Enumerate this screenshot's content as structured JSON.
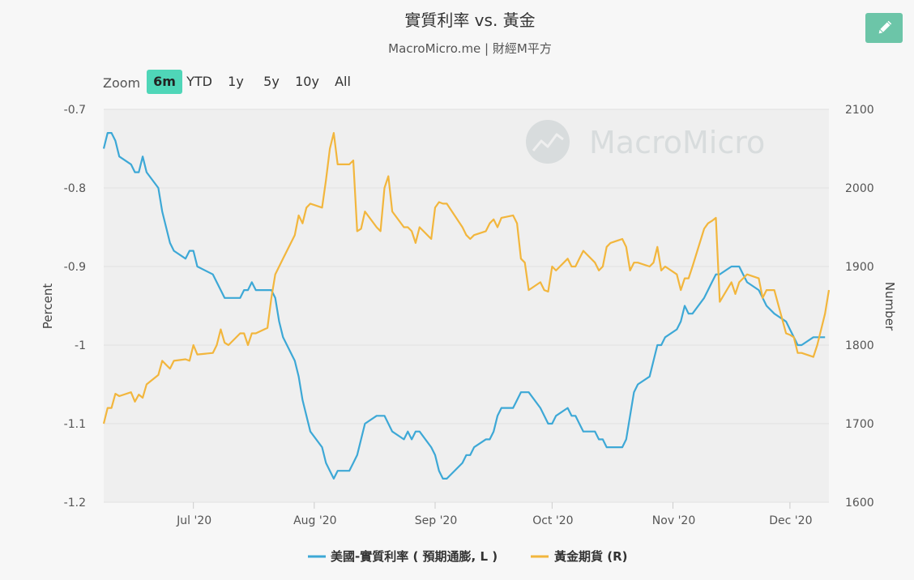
{
  "header": {
    "title": "實質利率 vs. 黃金",
    "subtitle": "MacroMicro.me | 財經M平方",
    "edit_icon": "pencil-icon"
  },
  "watermark": {
    "text": "MacroMicro"
  },
  "zoom": {
    "label": "Zoom",
    "options": [
      "6m",
      "YTD",
      "1y",
      "5y",
      "10y",
      "All"
    ],
    "selected": "6m"
  },
  "colors": {
    "plot_bg": "#efefef",
    "real_rate": "#3da8d6",
    "gold": "#f2b63d",
    "zoom_active": "#4fd6b8",
    "edit_button": "#6cc5a8"
  },
  "chart_data": {
    "type": "line",
    "x_ticks": [
      "Jul '20",
      "Aug '20",
      "Sep '20",
      "Oct '20",
      "Nov '20",
      "Dec '20"
    ],
    "x_range": [
      "2020-06-08",
      "2020-12-11"
    ],
    "y_left": {
      "label": "Percent",
      "range": [
        -1.2,
        -0.7
      ],
      "ticks": [
        "-0.7",
        "-0.8",
        "-0.9",
        "-1",
        "-1.1",
        "-1.2"
      ]
    },
    "y_right": {
      "label": "Number",
      "range": [
        1600,
        2100
      ],
      "ticks": [
        "2100",
        "2000",
        "1900",
        "1800",
        "1700",
        "1600"
      ]
    },
    "grid": true,
    "legend_position": "bottom",
    "series": [
      {
        "name": "美國-實質利率 ( 預期通膨, L )",
        "axis": "left",
        "points": [
          [
            "2020-06-08",
            -0.75
          ],
          [
            "2020-06-09",
            -0.73
          ],
          [
            "2020-06-10",
            -0.73
          ],
          [
            "2020-06-11",
            -0.74
          ],
          [
            "2020-06-12",
            -0.76
          ],
          [
            "2020-06-15",
            -0.77
          ],
          [
            "2020-06-16",
            -0.78
          ],
          [
            "2020-06-17",
            -0.78
          ],
          [
            "2020-06-18",
            -0.76
          ],
          [
            "2020-06-19",
            -0.78
          ],
          [
            "2020-06-22",
            -0.8
          ],
          [
            "2020-06-23",
            -0.83
          ],
          [
            "2020-06-24",
            -0.85
          ],
          [
            "2020-06-25",
            -0.87
          ],
          [
            "2020-06-26",
            -0.88
          ],
          [
            "2020-06-29",
            -0.89
          ],
          [
            "2020-06-30",
            -0.88
          ],
          [
            "2020-07-01",
            -0.88
          ],
          [
            "2020-07-02",
            -0.9
          ],
          [
            "2020-07-06",
            -0.91
          ],
          [
            "2020-07-07",
            -0.92
          ],
          [
            "2020-07-08",
            -0.93
          ],
          [
            "2020-07-09",
            -0.94
          ],
          [
            "2020-07-13",
            -0.94
          ],
          [
            "2020-07-14",
            -0.93
          ],
          [
            "2020-07-15",
            -0.93
          ],
          [
            "2020-07-16",
            -0.92
          ],
          [
            "2020-07-17",
            -0.93
          ],
          [
            "2020-07-20",
            -0.93
          ],
          [
            "2020-07-21",
            -0.93
          ],
          [
            "2020-07-22",
            -0.94
          ],
          [
            "2020-07-23",
            -0.97
          ],
          [
            "2020-07-24",
            -0.99
          ],
          [
            "2020-07-27",
            -1.02
          ],
          [
            "2020-07-28",
            -1.04
          ],
          [
            "2020-07-29",
            -1.07
          ],
          [
            "2020-07-30",
            -1.09
          ],
          [
            "2020-07-31",
            -1.11
          ],
          [
            "2020-08-03",
            -1.13
          ],
          [
            "2020-08-04",
            -1.15
          ],
          [
            "2020-08-05",
            -1.16
          ],
          [
            "2020-08-06",
            -1.17
          ],
          [
            "2020-08-07",
            -1.16
          ],
          [
            "2020-08-10",
            -1.16
          ],
          [
            "2020-08-11",
            -1.15
          ],
          [
            "2020-08-12",
            -1.14
          ],
          [
            "2020-08-13",
            -1.12
          ],
          [
            "2020-08-14",
            -1.1
          ],
          [
            "2020-08-17",
            -1.09
          ],
          [
            "2020-08-18",
            -1.09
          ],
          [
            "2020-08-19",
            -1.09
          ],
          [
            "2020-08-20",
            -1.1
          ],
          [
            "2020-08-21",
            -1.11
          ],
          [
            "2020-08-24",
            -1.12
          ],
          [
            "2020-08-25",
            -1.11
          ],
          [
            "2020-08-26",
            -1.12
          ],
          [
            "2020-08-27",
            -1.11
          ],
          [
            "2020-08-28",
            -1.11
          ],
          [
            "2020-08-31",
            -1.13
          ],
          [
            "2020-09-01",
            -1.14
          ],
          [
            "2020-09-02",
            -1.16
          ],
          [
            "2020-09-03",
            -1.17
          ],
          [
            "2020-09-04",
            -1.17
          ],
          [
            "2020-09-08",
            -1.15
          ],
          [
            "2020-09-09",
            -1.14
          ],
          [
            "2020-09-10",
            -1.14
          ],
          [
            "2020-09-11",
            -1.13
          ],
          [
            "2020-09-14",
            -1.12
          ],
          [
            "2020-09-15",
            -1.12
          ],
          [
            "2020-09-16",
            -1.11
          ],
          [
            "2020-09-17",
            -1.09
          ],
          [
            "2020-09-18",
            -1.08
          ],
          [
            "2020-09-21",
            -1.08
          ],
          [
            "2020-09-22",
            -1.07
          ],
          [
            "2020-09-23",
            -1.06
          ],
          [
            "2020-09-24",
            -1.06
          ],
          [
            "2020-09-25",
            -1.06
          ],
          [
            "2020-09-28",
            -1.08
          ],
          [
            "2020-09-29",
            -1.09
          ],
          [
            "2020-09-30",
            -1.1
          ],
          [
            "2020-10-01",
            -1.1
          ],
          [
            "2020-10-02",
            -1.09
          ],
          [
            "2020-10-05",
            -1.08
          ],
          [
            "2020-10-06",
            -1.09
          ],
          [
            "2020-10-07",
            -1.09
          ],
          [
            "2020-10-08",
            -1.1
          ],
          [
            "2020-10-09",
            -1.11
          ],
          [
            "2020-10-12",
            -1.11
          ],
          [
            "2020-10-13",
            -1.12
          ],
          [
            "2020-10-14",
            -1.12
          ],
          [
            "2020-10-15",
            -1.13
          ],
          [
            "2020-10-16",
            -1.13
          ],
          [
            "2020-10-19",
            -1.13
          ],
          [
            "2020-10-20",
            -1.12
          ],
          [
            "2020-10-21",
            -1.09
          ],
          [
            "2020-10-22",
            -1.06
          ],
          [
            "2020-10-23",
            -1.05
          ],
          [
            "2020-10-26",
            -1.04
          ],
          [
            "2020-10-27",
            -1.02
          ],
          [
            "2020-10-28",
            -1.0
          ],
          [
            "2020-10-29",
            -1.0
          ],
          [
            "2020-10-30",
            -0.99
          ],
          [
            "2020-11-02",
            -0.98
          ],
          [
            "2020-11-03",
            -0.97
          ],
          [
            "2020-11-04",
            -0.95
          ],
          [
            "2020-11-05",
            -0.96
          ],
          [
            "2020-11-06",
            -0.96
          ],
          [
            "2020-11-09",
            -0.94
          ],
          [
            "2020-11-10",
            -0.93
          ],
          [
            "2020-11-11",
            -0.92
          ],
          [
            "2020-11-12",
            -0.91
          ],
          [
            "2020-11-13",
            -0.91
          ],
          [
            "2020-11-16",
            -0.9
          ],
          [
            "2020-11-17",
            -0.9
          ],
          [
            "2020-11-18",
            -0.9
          ],
          [
            "2020-11-19",
            -0.91
          ],
          [
            "2020-11-20",
            -0.92
          ],
          [
            "2020-11-23",
            -0.93
          ],
          [
            "2020-11-24",
            -0.94
          ],
          [
            "2020-11-25",
            -0.95
          ],
          [
            "2020-11-27",
            -0.96
          ],
          [
            "2020-11-30",
            -0.97
          ],
          [
            "2020-12-01",
            -0.98
          ],
          [
            "2020-12-02",
            -0.99
          ],
          [
            "2020-12-03",
            -1.0
          ],
          [
            "2020-12-04",
            -1.0
          ],
          [
            "2020-12-07",
            -0.99
          ],
          [
            "2020-12-08",
            -0.99
          ],
          [
            "2020-12-09",
            -0.99
          ],
          [
            "2020-12-10",
            -0.99
          ]
        ]
      },
      {
        "name": "黃金期貨 (R)",
        "axis": "right",
        "points": [
          [
            "2020-06-08",
            1700
          ],
          [
            "2020-06-09",
            1720
          ],
          [
            "2020-06-10",
            1720
          ],
          [
            "2020-06-11",
            1738
          ],
          [
            "2020-06-12",
            1735
          ],
          [
            "2020-06-15",
            1740
          ],
          [
            "2020-06-16",
            1728
          ],
          [
            "2020-06-17",
            1737
          ],
          [
            "2020-06-18",
            1733
          ],
          [
            "2020-06-19",
            1750
          ],
          [
            "2020-06-22",
            1762
          ],
          [
            "2020-06-23",
            1780
          ],
          [
            "2020-06-24",
            1775
          ],
          [
            "2020-06-25",
            1770
          ],
          [
            "2020-06-26",
            1780
          ],
          [
            "2020-06-29",
            1782
          ],
          [
            "2020-06-30",
            1780
          ],
          [
            "2020-07-01",
            1800
          ],
          [
            "2020-07-02",
            1788
          ],
          [
            "2020-07-06",
            1790
          ],
          [
            "2020-07-07",
            1800
          ],
          [
            "2020-07-08",
            1820
          ],
          [
            "2020-07-09",
            1803
          ],
          [
            "2020-07-10",
            1800
          ],
          [
            "2020-07-13",
            1815
          ],
          [
            "2020-07-14",
            1815
          ],
          [
            "2020-07-15",
            1800
          ],
          [
            "2020-07-16",
            1815
          ],
          [
            "2020-07-17",
            1815
          ],
          [
            "2020-07-20",
            1822
          ],
          [
            "2020-07-21",
            1860
          ],
          [
            "2020-07-22",
            1890
          ],
          [
            "2020-07-23",
            1900
          ],
          [
            "2020-07-24",
            1910
          ],
          [
            "2020-07-27",
            1940
          ],
          [
            "2020-07-28",
            1965
          ],
          [
            "2020-07-29",
            1955
          ],
          [
            "2020-07-30",
            1975
          ],
          [
            "2020-07-31",
            1980
          ],
          [
            "2020-08-03",
            1975
          ],
          [
            "2020-08-04",
            2010
          ],
          [
            "2020-08-05",
            2050
          ],
          [
            "2020-08-06",
            2070
          ],
          [
            "2020-08-07",
            2030
          ],
          [
            "2020-08-10",
            2030
          ],
          [
            "2020-08-11",
            2035
          ],
          [
            "2020-08-12",
            1945
          ],
          [
            "2020-08-13",
            1948
          ],
          [
            "2020-08-14",
            1970
          ],
          [
            "2020-08-17",
            1950
          ],
          [
            "2020-08-18",
            1945
          ],
          [
            "2020-08-19",
            2000
          ],
          [
            "2020-08-20",
            2015
          ],
          [
            "2020-08-21",
            1970
          ],
          [
            "2020-08-24",
            1950
          ],
          [
            "2020-08-25",
            1950
          ],
          [
            "2020-08-26",
            1945
          ],
          [
            "2020-08-27",
            1930
          ],
          [
            "2020-08-28",
            1950
          ],
          [
            "2020-08-31",
            1935
          ],
          [
            "2020-09-01",
            1975
          ],
          [
            "2020-09-02",
            1982
          ],
          [
            "2020-09-03",
            1980
          ],
          [
            "2020-09-04",
            1980
          ],
          [
            "2020-09-08",
            1950
          ],
          [
            "2020-09-09",
            1940
          ],
          [
            "2020-09-10",
            1935
          ],
          [
            "2020-09-11",
            1940
          ],
          [
            "2020-09-14",
            1945
          ],
          [
            "2020-09-15",
            1955
          ],
          [
            "2020-09-16",
            1960
          ],
          [
            "2020-09-17",
            1950
          ],
          [
            "2020-09-18",
            1962
          ],
          [
            "2020-09-21",
            1965
          ],
          [
            "2020-09-22",
            1955
          ],
          [
            "2020-09-23",
            1910
          ],
          [
            "2020-09-24",
            1905
          ],
          [
            "2020-09-25",
            1870
          ],
          [
            "2020-09-28",
            1880
          ],
          [
            "2020-09-29",
            1870
          ],
          [
            "2020-09-30",
            1868
          ],
          [
            "2020-10-01",
            1900
          ],
          [
            "2020-10-02",
            1895
          ],
          [
            "2020-10-05",
            1910
          ],
          [
            "2020-10-06",
            1900
          ],
          [
            "2020-10-07",
            1900
          ],
          [
            "2020-10-08",
            1910
          ],
          [
            "2020-10-09",
            1920
          ],
          [
            "2020-10-12",
            1905
          ],
          [
            "2020-10-13",
            1895
          ],
          [
            "2020-10-14",
            1900
          ],
          [
            "2020-10-15",
            1925
          ],
          [
            "2020-10-16",
            1930
          ],
          [
            "2020-10-19",
            1935
          ],
          [
            "2020-10-20",
            1925
          ],
          [
            "2020-10-21",
            1895
          ],
          [
            "2020-10-22",
            1905
          ],
          [
            "2020-10-23",
            1905
          ],
          [
            "2020-10-26",
            1900
          ],
          [
            "2020-10-27",
            1905
          ],
          [
            "2020-10-28",
            1925
          ],
          [
            "2020-10-29",
            1895
          ],
          [
            "2020-10-30",
            1900
          ],
          [
            "2020-11-02",
            1890
          ],
          [
            "2020-11-03",
            1870
          ],
          [
            "2020-11-04",
            1885
          ],
          [
            "2020-11-05",
            1885
          ],
          [
            "2020-11-06",
            1900
          ],
          [
            "2020-11-09",
            1948
          ],
          [
            "2020-11-10",
            1955
          ],
          [
            "2020-11-11",
            1958
          ],
          [
            "2020-11-12",
            1962
          ],
          [
            "2020-11-13",
            1855
          ],
          [
            "2020-11-16",
            1880
          ],
          [
            "2020-11-17",
            1865
          ],
          [
            "2020-11-18",
            1880
          ],
          [
            "2020-11-19",
            1885
          ],
          [
            "2020-11-20",
            1890
          ],
          [
            "2020-11-23",
            1885
          ],
          [
            "2020-11-24",
            1860
          ],
          [
            "2020-11-25",
            1870
          ],
          [
            "2020-11-27",
            1870
          ],
          [
            "2020-11-30",
            1815
          ],
          [
            "2020-12-01",
            1813
          ],
          [
            "2020-12-02",
            1810
          ],
          [
            "2020-12-03",
            1790
          ],
          [
            "2020-12-04",
            1790
          ],
          [
            "2020-12-07",
            1785
          ],
          [
            "2020-12-08",
            1800
          ],
          [
            "2020-12-09",
            1820
          ],
          [
            "2020-12-10",
            1840
          ],
          [
            "2020-12-11",
            1870
          ]
        ]
      }
    ]
  }
}
